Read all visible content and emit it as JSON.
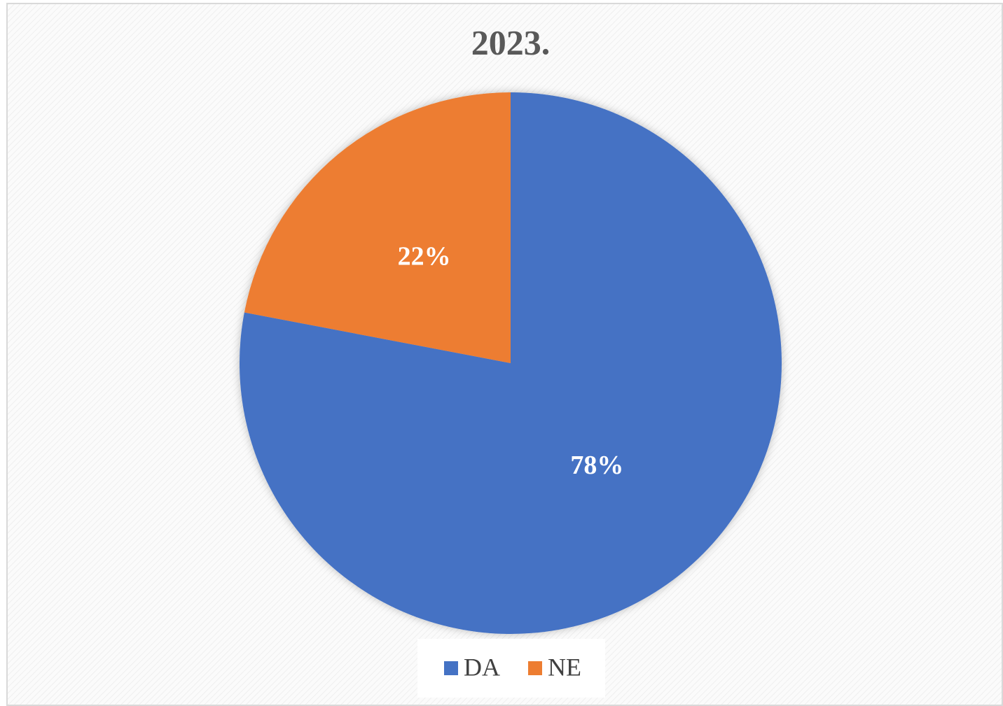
{
  "chart_data": {
    "type": "pie",
    "title": "2023.",
    "categories": [
      "DA",
      "NE"
    ],
    "values": [
      78,
      22
    ],
    "value_labels": [
      "78%",
      "22%"
    ],
    "colors": [
      "#4472c4",
      "#ed7d31"
    ],
    "legend": "bottom"
  }
}
